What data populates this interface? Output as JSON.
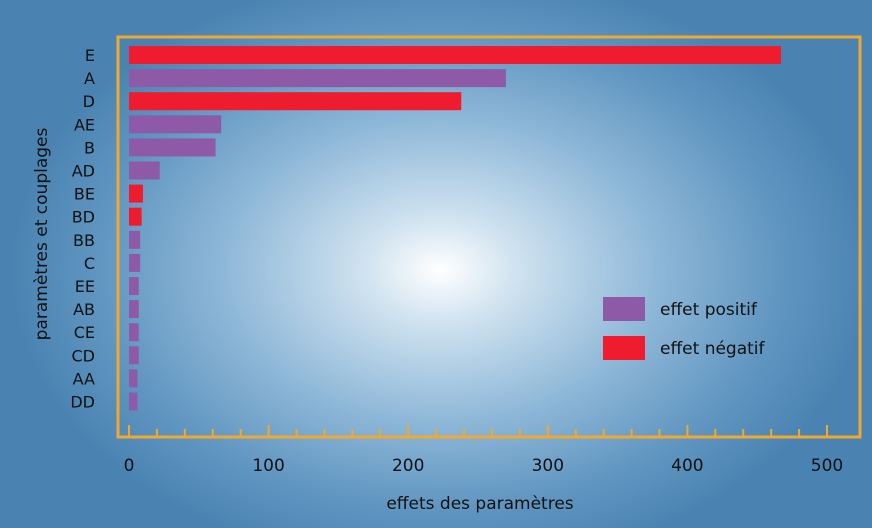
{
  "chart_data": {
    "type": "bar",
    "orientation": "horizontal",
    "xlabel": "effets des paramètres",
    "ylabel": "paramètres et couplages",
    "xlim": [
      0,
      500
    ],
    "xticks": [
      "0",
      "100",
      "200",
      "300",
      "400",
      "500"
    ],
    "grid": false,
    "legend_position": "right",
    "categories": [
      "E",
      "A",
      "D",
      "AE",
      "B",
      "AD",
      "BE",
      "BD",
      "BB",
      "C",
      "EE",
      "AB",
      "CE",
      "CD",
      "AA",
      "DD"
    ],
    "values": [
      467,
      270,
      238,
      66,
      62,
      22,
      10,
      9,
      8,
      8,
      7,
      7,
      7,
      7,
      6,
      6
    ],
    "effect": [
      "negatif",
      "positif",
      "negatif",
      "positif",
      "positif",
      "positif",
      "negatif",
      "negatif",
      "positif",
      "positif",
      "positif",
      "positif",
      "positif",
      "positif",
      "positif",
      "positif"
    ],
    "legend": [
      {
        "key": "positif",
        "label": "effet positif",
        "color": "#8e5aa8"
      },
      {
        "key": "negatif",
        "label": "effet négatif",
        "color": "#ee1c2e"
      }
    ],
    "frame_color": "#f0a830"
  }
}
